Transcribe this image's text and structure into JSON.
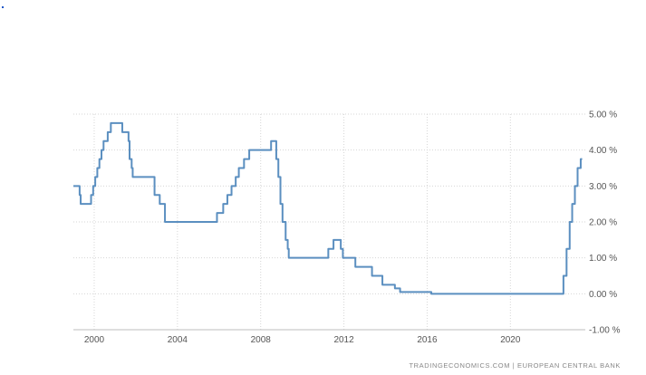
{
  "chart_data": {
    "type": "line",
    "title": "",
    "xlabel": "",
    "ylabel": "",
    "xlim": [
      1999.0,
      2023.6
    ],
    "ylim": [
      -1.0,
      5.0
    ],
    "x_ticks": [
      2000,
      2004,
      2008,
      2012,
      2016,
      2020
    ],
    "y_ticks": [
      5,
      4,
      3,
      2,
      1,
      0,
      -1
    ],
    "y_tick_labels": [
      "5.00 %",
      "4.00 %",
      "3.00 %",
      "2.00 %",
      "1.00 %",
      "0.00 %",
      "-1.00 %"
    ],
    "grid": true,
    "line_color": "#5b8fc0",
    "source_label": "TRADINGECONOMICS.COM  |  EUROPEAN CENTRAL BANK",
    "series": [
      {
        "values": [
          [
            1999.0,
            3.0
          ],
          [
            1999.3,
            3.0
          ],
          [
            1999.3,
            2.75
          ],
          [
            1999.35,
            2.75
          ],
          [
            1999.35,
            2.5
          ],
          [
            1999.85,
            2.5
          ],
          [
            1999.85,
            2.75
          ],
          [
            1999.95,
            2.75
          ],
          [
            1999.95,
            3.0
          ],
          [
            2000.05,
            3.0
          ],
          [
            2000.05,
            3.25
          ],
          [
            2000.15,
            3.25
          ],
          [
            2000.15,
            3.5
          ],
          [
            2000.25,
            3.5
          ],
          [
            2000.25,
            3.75
          ],
          [
            2000.35,
            3.75
          ],
          [
            2000.35,
            4.0
          ],
          [
            2000.45,
            4.0
          ],
          [
            2000.45,
            4.25
          ],
          [
            2000.65,
            4.25
          ],
          [
            2000.65,
            4.5
          ],
          [
            2000.8,
            4.5
          ],
          [
            2000.8,
            4.75
          ],
          [
            2001.35,
            4.75
          ],
          [
            2001.35,
            4.5
          ],
          [
            2001.65,
            4.5
          ],
          [
            2001.65,
            4.25
          ],
          [
            2001.7,
            4.25
          ],
          [
            2001.7,
            3.75
          ],
          [
            2001.8,
            3.75
          ],
          [
            2001.8,
            3.5
          ],
          [
            2001.85,
            3.5
          ],
          [
            2001.85,
            3.25
          ],
          [
            2002.9,
            3.25
          ],
          [
            2002.9,
            2.75
          ],
          [
            2003.15,
            2.75
          ],
          [
            2003.15,
            2.5
          ],
          [
            2003.4,
            2.5
          ],
          [
            2003.4,
            2.0
          ],
          [
            2005.9,
            2.0
          ],
          [
            2005.9,
            2.25
          ],
          [
            2006.2,
            2.25
          ],
          [
            2006.2,
            2.5
          ],
          [
            2006.4,
            2.5
          ],
          [
            2006.4,
            2.75
          ],
          [
            2006.6,
            2.75
          ],
          [
            2006.6,
            3.0
          ],
          [
            2006.8,
            3.0
          ],
          [
            2006.8,
            3.25
          ],
          [
            2006.95,
            3.25
          ],
          [
            2006.95,
            3.5
          ],
          [
            2007.2,
            3.5
          ],
          [
            2007.2,
            3.75
          ],
          [
            2007.45,
            3.75
          ],
          [
            2007.45,
            4.0
          ],
          [
            2008.5,
            4.0
          ],
          [
            2008.5,
            4.25
          ],
          [
            2008.75,
            4.25
          ],
          [
            2008.75,
            3.75
          ],
          [
            2008.85,
            3.75
          ],
          [
            2008.85,
            3.25
          ],
          [
            2008.95,
            3.25
          ],
          [
            2008.95,
            2.5
          ],
          [
            2009.05,
            2.5
          ],
          [
            2009.05,
            2.0
          ],
          [
            2009.2,
            2.0
          ],
          [
            2009.2,
            1.5
          ],
          [
            2009.3,
            1.5
          ],
          [
            2009.3,
            1.25
          ],
          [
            2009.35,
            1.25
          ],
          [
            2009.35,
            1.0
          ],
          [
            2011.25,
            1.0
          ],
          [
            2011.25,
            1.25
          ],
          [
            2011.5,
            1.25
          ],
          [
            2011.5,
            1.5
          ],
          [
            2011.85,
            1.5
          ],
          [
            2011.85,
            1.25
          ],
          [
            2011.95,
            1.25
          ],
          [
            2011.95,
            1.0
          ],
          [
            2012.55,
            1.0
          ],
          [
            2012.55,
            0.75
          ],
          [
            2013.35,
            0.75
          ],
          [
            2013.35,
            0.5
          ],
          [
            2013.85,
            0.5
          ],
          [
            2013.85,
            0.25
          ],
          [
            2014.45,
            0.25
          ],
          [
            2014.45,
            0.15
          ],
          [
            2014.7,
            0.15
          ],
          [
            2014.7,
            0.05
          ],
          [
            2016.2,
            0.05
          ],
          [
            2016.2,
            0.0
          ],
          [
            2022.55,
            0.0
          ],
          [
            2022.55,
            0.5
          ],
          [
            2022.7,
            0.5
          ],
          [
            2022.7,
            1.25
          ],
          [
            2022.85,
            1.25
          ],
          [
            2022.85,
            2.0
          ],
          [
            2022.97,
            2.0
          ],
          [
            2022.97,
            2.5
          ],
          [
            2023.1,
            2.5
          ],
          [
            2023.1,
            3.0
          ],
          [
            2023.23,
            3.0
          ],
          [
            2023.23,
            3.5
          ],
          [
            2023.38,
            3.5
          ],
          [
            2023.38,
            3.75
          ],
          [
            2023.45,
            3.75
          ]
        ]
      }
    ]
  }
}
